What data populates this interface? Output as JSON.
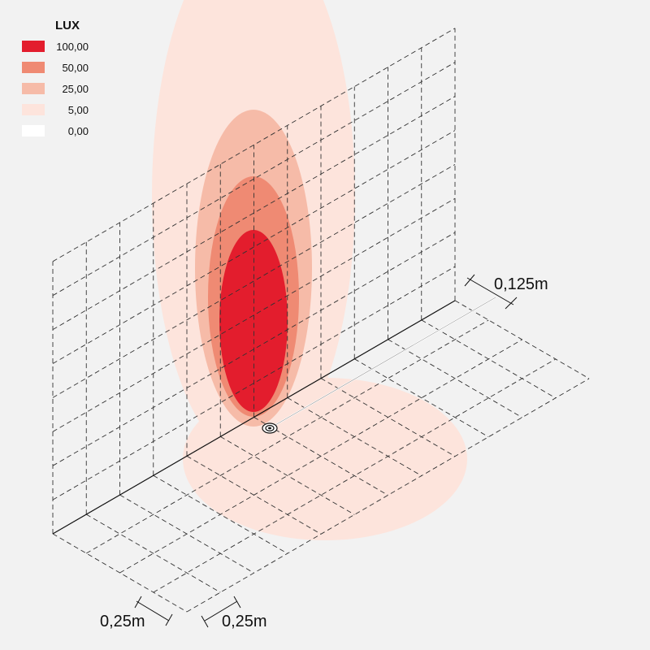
{
  "legend": {
    "title": "LUX",
    "items": [
      {
        "label": "100,00",
        "color": "#e31d2d"
      },
      {
        "label": "50,00",
        "color": "#ef8a73"
      },
      {
        "label": "25,00",
        "color": "#f6bba8"
      },
      {
        "label": "5,00",
        "color": "#fde4dc"
      },
      {
        "label": "0,00",
        "color": "#ffffff"
      }
    ]
  },
  "dimensions": {
    "offset": "0,125m",
    "grid_width": "0,25m",
    "grid_depth": "0,25m"
  }
}
